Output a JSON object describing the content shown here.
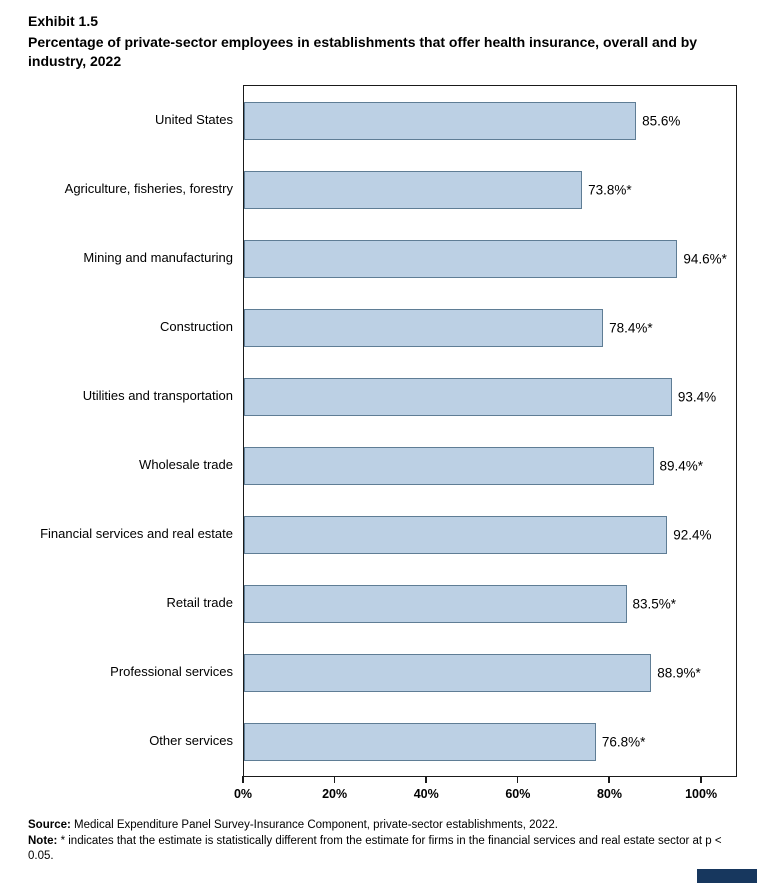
{
  "header": {
    "exhibit": "Exhibit 1.5",
    "title": "Percentage of private-sector employees in establishments that offer health insurance, overall and by industry, 2022"
  },
  "chart_data": {
    "type": "bar",
    "orientation": "horizontal",
    "title": "Percentage of private-sector employees in establishments that offer health insurance, overall and by industry, 2022",
    "categories": [
      "United States",
      "Agriculture, fisheries, forestry",
      "Mining and manufacturing",
      "Construction",
      "Utilities and transportation",
      "Wholesale trade",
      "Financial services and real estate",
      "Retail trade",
      "Professional services",
      "Other services"
    ],
    "values": [
      85.6,
      73.8,
      94.6,
      78.4,
      93.4,
      89.4,
      92.4,
      83.5,
      88.9,
      76.8
    ],
    "value_labels": [
      "85.6%",
      "73.8%*",
      "94.6%*",
      "78.4%*",
      "93.4%",
      "89.4%*",
      "92.4%",
      "83.5%*",
      "88.9%*",
      "76.8%*"
    ],
    "x_ticks": [
      "0%",
      "20%",
      "40%",
      "60%",
      "80%",
      "100%"
    ],
    "x_tick_values": [
      0,
      20,
      40,
      60,
      80,
      100
    ],
    "xlim": [
      0,
      107.4
    ],
    "grid": false,
    "legend": "none",
    "bar_fill": "#bcd0e4",
    "bar_border": "#5f7d95"
  },
  "footer": {
    "source_label": "Source:",
    "source_text": " Medical Expenditure Panel Survey-Insurance Component, private-sector establishments, 2022.",
    "note_label": "Note:",
    "note_text": " * indicates that the estimate is statistically different from the estimate for firms in the financial services and real estate sector at p < 0.05."
  }
}
